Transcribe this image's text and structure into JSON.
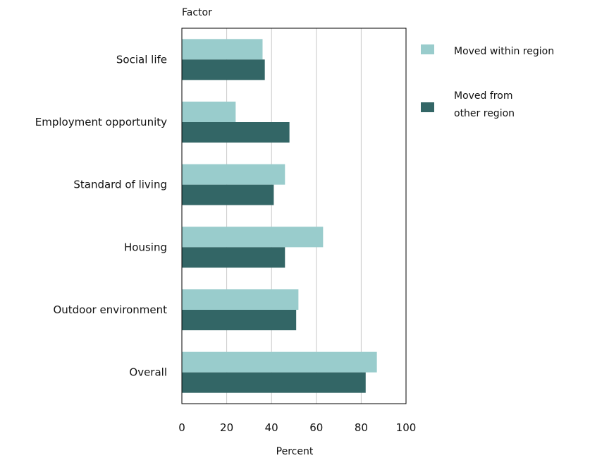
{
  "chart_data": {
    "type": "bar",
    "orientation": "horizontal",
    "title": "",
    "ylabel": "Factor",
    "xlabel": "Percent",
    "xlim": [
      0,
      100
    ],
    "xticks": [
      "0",
      "20",
      "40",
      "60",
      "80",
      "100"
    ],
    "grid": true,
    "legend_position": "right",
    "categories": [
      "Social life",
      "Employment opportunity",
      "Standard of living",
      "Housing",
      "Outdoor environment",
      "Overall"
    ],
    "series": [
      {
        "name": "Moved within region",
        "color": "#99cccc",
        "values": [
          36,
          24,
          46,
          63,
          52,
          87
        ]
      },
      {
        "name": "Moved from other region",
        "color": "#336666",
        "values": [
          37,
          48,
          41,
          46,
          51,
          82
        ]
      }
    ]
  },
  "legend": {
    "items": [
      {
        "lines": [
          "Moved within region"
        ]
      },
      {
        "lines": [
          "Moved from",
          "other region"
        ]
      }
    ]
  }
}
